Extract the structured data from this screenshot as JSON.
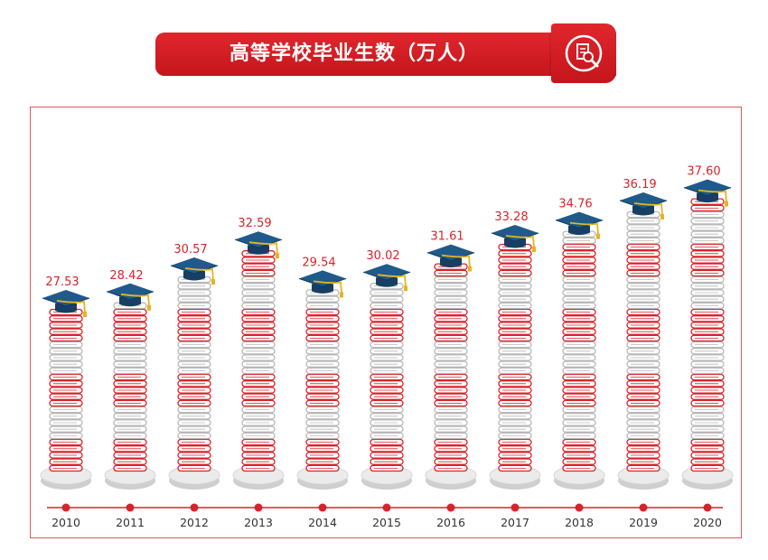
{
  "title": "高等学校毕业生数（万人）",
  "icon": "document-search-icon",
  "colors": {
    "accent": "#d8232a",
    "book_red": "#d8232a",
    "book_gray": "#b8b8b8",
    "cap": "#1f5a8a",
    "tassel": "#e6b422",
    "label": "#d8232a",
    "year": "#333333"
  },
  "chart_data": {
    "type": "bar",
    "title": "高等学校毕业生数（万人）",
    "categories": [
      "2010",
      "2011",
      "2012",
      "2013",
      "2014",
      "2015",
      "2016",
      "2017",
      "2018",
      "2019",
      "2020"
    ],
    "values": [
      27.53,
      28.42,
      30.57,
      32.59,
      29.54,
      30.02,
      31.61,
      33.28,
      34.76,
      36.19,
      37.6
    ],
    "xlabel": "",
    "ylabel": "",
    "grid": false,
    "legend": "none"
  }
}
